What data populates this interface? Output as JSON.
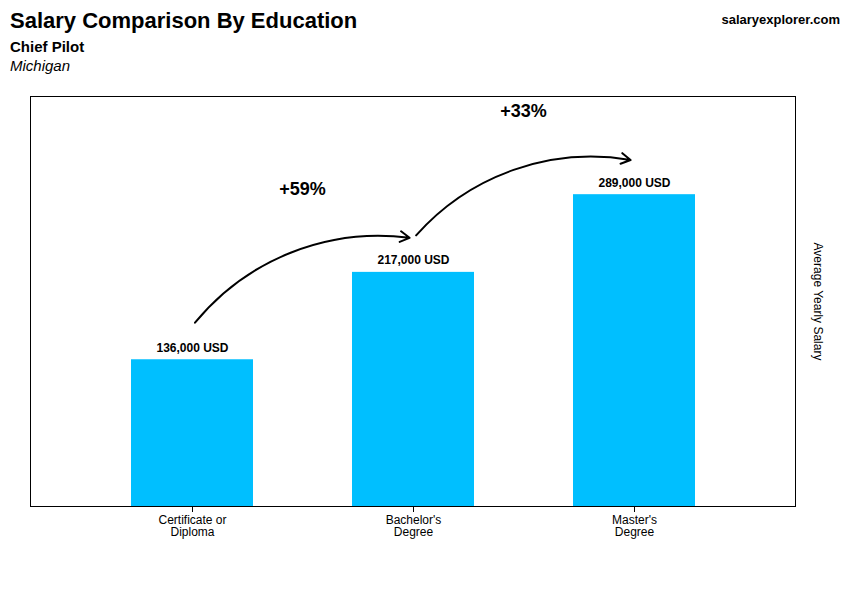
{
  "chart_data": {
    "type": "bar",
    "title": "Salary Comparison By Education",
    "subtitle": "Chief Pilot",
    "ylabel": "Average Yearly Salary",
    "categories": [
      "Certificate or\nDiploma",
      "Bachelor's\nDegree",
      "Master's\nDegree"
    ],
    "values": [
      136000,
      217000,
      289000
    ],
    "value_labels": [
      "136,000 USD",
      "217,000 USD",
      "289,000 USD"
    ],
    "data_labels": true,
    "color": "#00BFFF",
    "ylim": [
      0,
      380000
    ],
    "tick_labels": "x",
    "annotations": [
      {
        "text": "Michigan"
      },
      {
        "text": "salaryexplorer.com"
      },
      {
        "text": "+59%",
        "from": "Certificate or\nDiploma",
        "to": "Bachelor's\nDegree"
      },
      {
        "text": "+33%",
        "from": "Bachelor's\nDegree",
        "to": "Master's\nDegree"
      }
    ]
  }
}
